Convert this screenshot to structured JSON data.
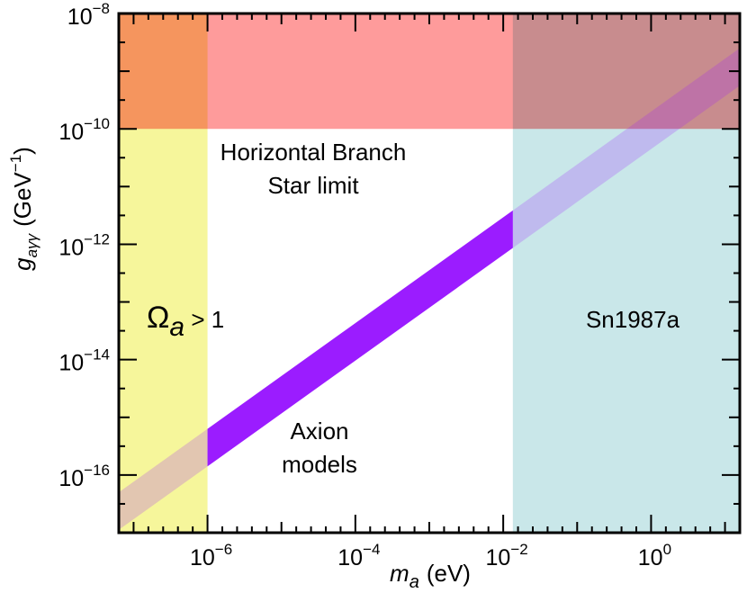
{
  "chart_data": {
    "type": "area",
    "title": "",
    "xlabel": {
      "symbol": "m",
      "subscript": "a",
      "unit": "(eV)"
    },
    "ylabel": {
      "symbol": "g",
      "subscript": "aγγ",
      "unit_pre": "(GeV",
      "unit_exp": "−1",
      "unit_post": ")"
    },
    "x_scale": "log10",
    "y_scale": "log10",
    "xlim_log10": [
      -7.2,
      1.2
    ],
    "ylim_log10": [
      -17,
      -8
    ],
    "x_tick_labels": [
      {
        "log": -6,
        "base": "10",
        "exp": "−6"
      },
      {
        "log": -4,
        "base": "10",
        "exp": "−4"
      },
      {
        "log": -2,
        "base": "10",
        "exp": "−2"
      },
      {
        "log": 0,
        "base": "10",
        "exp": "0"
      }
    ],
    "y_tick_labels": [
      {
        "log": -8,
        "base": "10",
        "exp": "−8"
      },
      {
        "log": -10,
        "base": "10",
        "exp": "−10"
      },
      {
        "log": -12,
        "base": "10",
        "exp": "−12"
      },
      {
        "log": -14,
        "base": "10",
        "exp": "−14"
      },
      {
        "log": -16,
        "base": "10",
        "exp": "−16"
      }
    ],
    "regions": [
      {
        "name": "Omega_a > 1",
        "x_log": [
          -7.2,
          -6
        ],
        "y_log": [
          -17,
          -8
        ],
        "color": "#f5f58a"
      },
      {
        "name": "Horizontal Branch Star limit",
        "x_log": [
          -7.2,
          1.2
        ],
        "y_log": [
          -10,
          -8
        ],
        "color": "#fe8a8a"
      },
      {
        "name": "Sn1987a",
        "x_log": [
          -1.87,
          1.2
        ],
        "y_log": [
          -17,
          -8
        ],
        "color": "#a8d8dc"
      }
    ],
    "axion_band": {
      "name": "Axion models",
      "color": "#9b1cff",
      "upper_edge": [
        [
          -7.2,
          -16.3
        ],
        [
          1.2,
          -8.6
        ]
      ],
      "lower_edge": [
        [
          -7.2,
          -16.95
        ],
        [
          1.2,
          -9.25
        ]
      ],
      "solid_x_log": [
        -6,
        -1.87
      ]
    },
    "labels": {
      "omega_symbol": "Ω",
      "omega_sub": "a",
      "omega_rest": " > 1",
      "hb_line1": "Horizontal Branch",
      "hb_line2": "Star limit",
      "sn": "Sn1987a",
      "axion_line1": "Axion",
      "axion_line2": "models"
    }
  }
}
